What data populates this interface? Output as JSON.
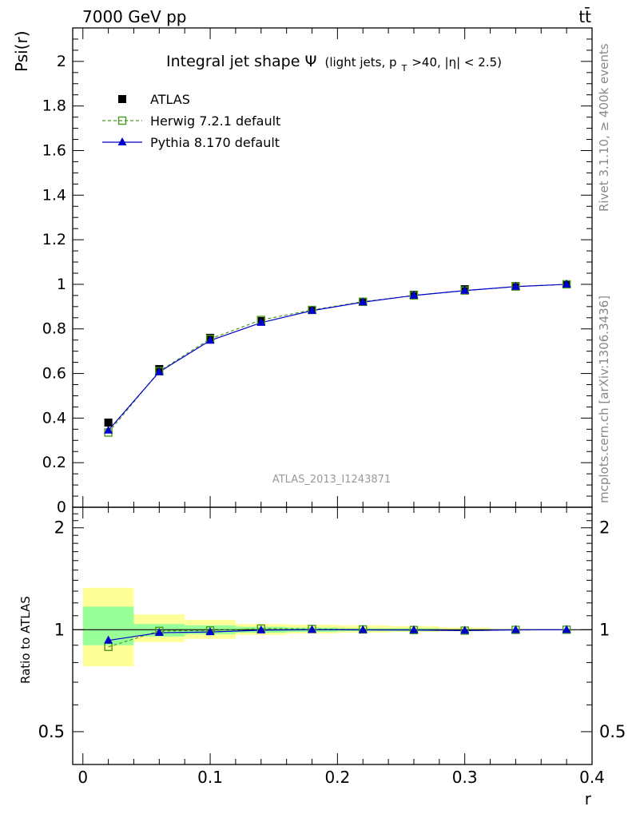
{
  "header": {
    "left": "7000 GeV pp",
    "right": "tt̄"
  },
  "side_labels": {
    "rivet": "Rivet 3.1.10, ≥ 400k events",
    "mcplots": "mcplots.cern.ch [arXiv:1306.3436]"
  },
  "chart_data": [
    {
      "type": "scatter",
      "panel": "main",
      "title_main": "Integral jet shape",
      "title_symbol": "Ψ",
      "title_cond_1": "(light jets, p",
      "title_cond_sub": "T",
      "title_cond_2": ">40, |η| < 2.5)",
      "ylabel": "Psi(r)",
      "xlabel": "",
      "watermark": "ATLAS_2013_I1243871",
      "xlim": [
        -0.008,
        0.4
      ],
      "ylim": [
        0,
        2.15
      ],
      "yticks": [
        0,
        0.2,
        0.4,
        0.6,
        0.8,
        1,
        1.2,
        1.4,
        1.6,
        1.8,
        2
      ],
      "ytick_labels": [
        "0",
        "0.2",
        "0.4",
        "0.6",
        "0.8",
        "1",
        "1.2",
        "1.4",
        "1.6",
        "1.8",
        "2"
      ],
      "x": [
        0.02,
        0.06,
        0.1,
        0.14,
        0.18,
        0.22,
        0.26,
        0.3,
        0.34,
        0.38
      ],
      "series": [
        {
          "name": "ATLAS",
          "color": "#000000",
          "marker": "square-filled",
          "line": "none",
          "values": [
            0.38,
            0.62,
            0.76,
            0.835,
            0.885,
            0.922,
            0.953,
            0.978,
            0.992,
            1.0
          ]
        },
        {
          "name": "Herwig 7.2.1 default",
          "color": "#4a9a1c",
          "marker": "square-open",
          "line": "dashed",
          "values": [
            0.335,
            0.61,
            0.755,
            0.84,
            0.885,
            0.922,
            0.95,
            0.972,
            0.99,
            1.0
          ]
        },
        {
          "name": "Pythia 8.170 default",
          "color": "#0000cc",
          "marker": "triangle-filled",
          "line": "solid",
          "values": [
            0.345,
            0.607,
            0.748,
            0.828,
            0.882,
            0.92,
            0.95,
            0.972,
            0.99,
            1.0
          ]
        }
      ],
      "legend_position": "top-left"
    },
    {
      "type": "line",
      "panel": "ratio",
      "ylabel": "Ratio to ATLAS",
      "xlabel": "r",
      "xlim": [
        -0.008,
        0.4
      ],
      "ylim": [
        0.4,
        2.3
      ],
      "yticks": [
        0.5,
        1,
        2
      ],
      "ytick_labels": [
        "0.5",
        "1",
        "2"
      ],
      "xticks": [
        0,
        0.1,
        0.2,
        0.3,
        0.4
      ],
      "xtick_labels": [
        "0",
        "0.1",
        "0.2",
        "0.3",
        "0.4"
      ],
      "bin_edges": [
        0,
        0.04,
        0.08,
        0.12,
        0.16,
        0.2,
        0.24,
        0.28,
        0.32,
        0.36,
        0.4
      ],
      "band_inner_color": "#99ff99",
      "band_outer_color": "#ffff99",
      "band_inner": [
        [
          0.9,
          1.17
        ],
        [
          0.955,
          1.04
        ],
        [
          0.97,
          1.03
        ],
        [
          0.98,
          1.02
        ],
        [
          0.985,
          1.015
        ],
        [
          0.99,
          1.01
        ],
        [
          0.99,
          1.01
        ],
        [
          0.995,
          1.005
        ],
        [
          0.997,
          1.003
        ],
        [
          0.999,
          1.001
        ]
      ],
      "band_outer": [
        [
          0.78,
          1.33
        ],
        [
          0.92,
          1.11
        ],
        [
          0.94,
          1.07
        ],
        [
          0.965,
          1.04
        ],
        [
          0.975,
          1.035
        ],
        [
          0.98,
          1.03
        ],
        [
          0.985,
          1.025
        ],
        [
          0.99,
          1.015
        ],
        [
          0.995,
          1.005
        ],
        [
          0.998,
          1.002
        ]
      ],
      "x": [
        0.02,
        0.06,
        0.1,
        0.14,
        0.18,
        0.22,
        0.26,
        0.3,
        0.34,
        0.38
      ],
      "series": [
        {
          "name": "Herwig 7.2.1 default",
          "color": "#4a9a1c",
          "marker": "square-open",
          "line": "dashed",
          "values": [
            0.89,
            0.992,
            0.995,
            1.008,
            1.005,
            1.002,
            0.998,
            0.994,
            0.999,
            1.0
          ]
        },
        {
          "name": "Pythia 8.170 default",
          "color": "#0000cc",
          "marker": "triangle-filled",
          "line": "solid",
          "values": [
            0.93,
            0.98,
            0.985,
            0.997,
            1.0,
            0.999,
            0.998,
            0.994,
            0.999,
            1.0
          ]
        }
      ]
    }
  ]
}
